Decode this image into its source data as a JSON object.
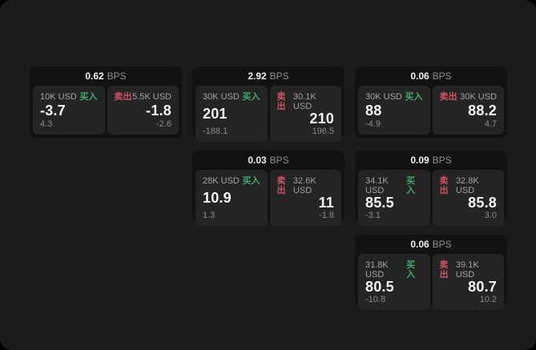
{
  "page": {
    "outer_background": "#000000",
    "background": "#1b1b1b"
  },
  "colors": {
    "buy_green": "#43a86d",
    "sell_red": "#cd5365",
    "card_bg": "#121212",
    "panel_bg": "#242424",
    "text_primary": "#f5f5f5",
    "text_secondary": "#a3a3a3",
    "text_muted": "#8b8b8b"
  },
  "labels": {
    "buy": "买入",
    "sell": "卖出",
    "unit": "BPS"
  },
  "cards": [
    {
      "bps": "0.62",
      "buy": {
        "amount": "10K USD",
        "value": "-3.7",
        "delta": "4.3"
      },
      "sell": {
        "amount": "5.5K USD",
        "value": "-1.8",
        "delta": "-2.6"
      }
    },
    {
      "bps": "2.92",
      "buy": {
        "amount": "30K USD",
        "value": "201",
        "delta": "-188.1"
      },
      "sell": {
        "amount": "30.1K USD",
        "value": "210",
        "delta": "196.5"
      }
    },
    {
      "bps": "0.06",
      "buy": {
        "amount": "30K USD",
        "value": "88",
        "delta": "-4.9"
      },
      "sell": {
        "amount": "30K USD",
        "value": "88.2",
        "delta": "4.7"
      }
    },
    {
      "bps": "0.03",
      "buy": {
        "amount": "28K USD",
        "value": "10.9",
        "delta": "1.3"
      },
      "sell": {
        "amount": "32.6K USD",
        "value": "11",
        "delta": "-1.8"
      }
    },
    {
      "bps": "0.09",
      "buy": {
        "amount": "34.1K USD",
        "value": "85.5",
        "delta": "-3.1"
      },
      "sell": {
        "amount": "32.8K USD",
        "value": "85.8",
        "delta": "3.0"
      }
    },
    {
      "bps": "0.06",
      "buy": {
        "amount": "31.8K USD",
        "value": "80.5",
        "delta": "-10.8"
      },
      "sell": {
        "amount": "39.1K USD",
        "value": "80.7",
        "delta": "10.2"
      }
    }
  ]
}
